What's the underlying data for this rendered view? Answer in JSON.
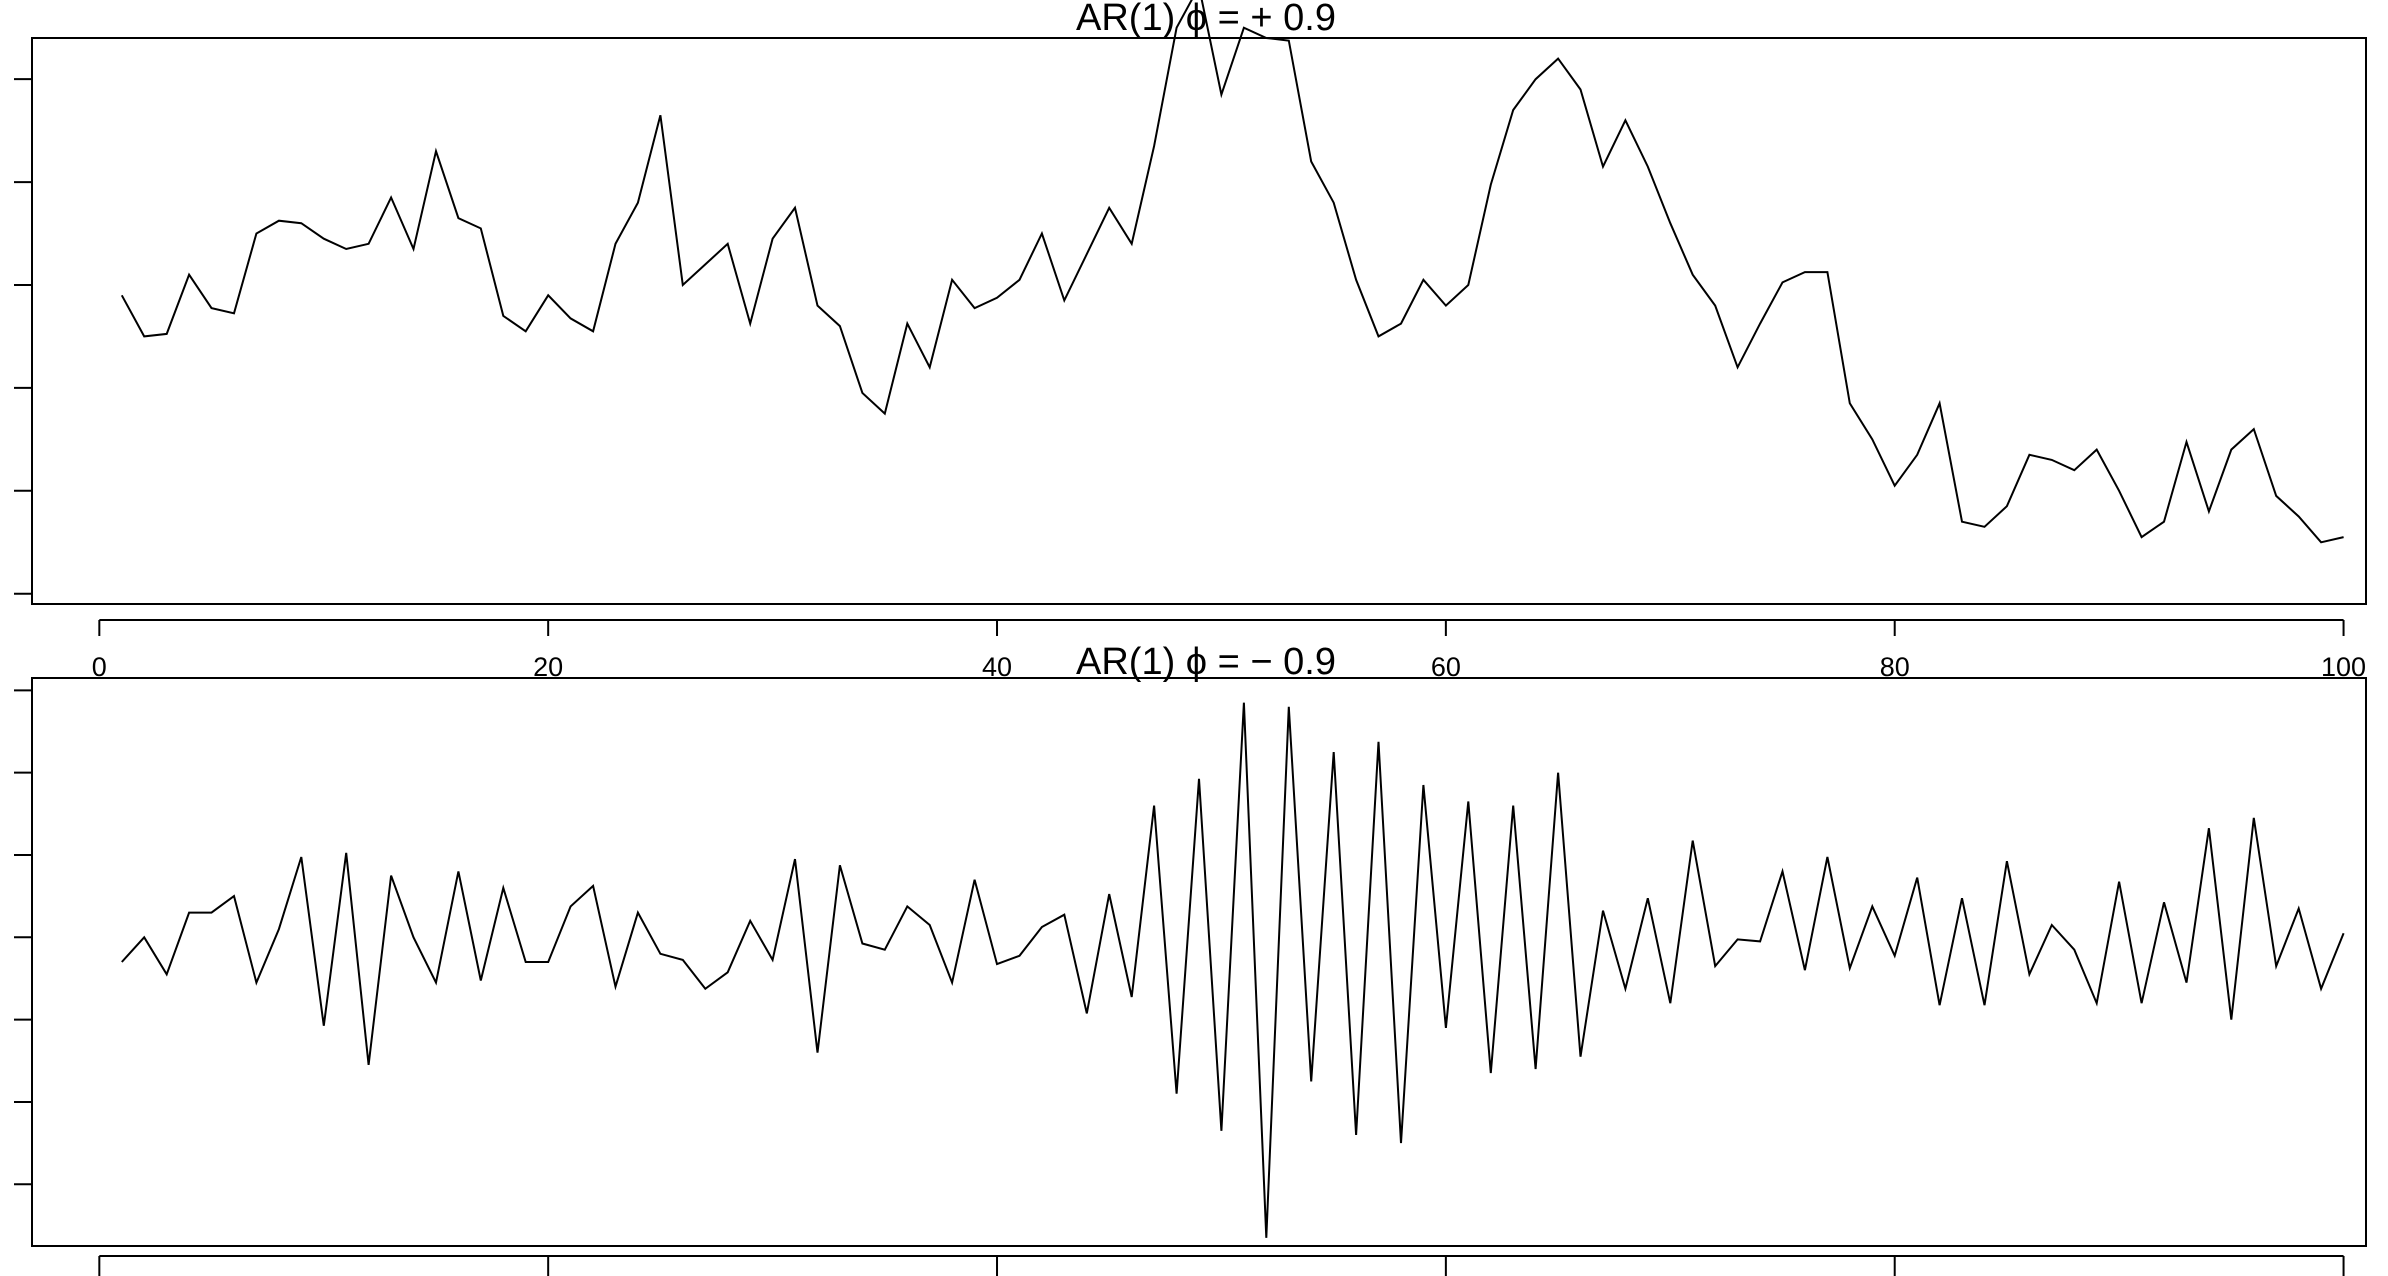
{
  "chart_data": [
    {
      "type": "line",
      "title": "AR(1)   ϕ = + 0.9",
      "xlabel": "",
      "ylabel": "",
      "xlim": [
        -3,
        101
      ],
      "ylim": [
        -5.2,
        5.8
      ],
      "x_ticks": [
        0,
        20,
        40,
        60,
        80,
        100
      ],
      "x_tick_labels": [
        "0",
        "20",
        "40",
        "60",
        "80",
        "100"
      ],
      "y_ticks": [
        -5,
        -3,
        -1,
        1,
        3,
        5
      ],
      "y_tick_labels": [],
      "grid": false,
      "x": [
        1,
        2,
        3,
        4,
        5,
        6,
        7,
        8,
        9,
        10,
        11,
        12,
        13,
        14,
        15,
        16,
        17,
        18,
        19,
        20,
        21,
        22,
        23,
        24,
        25,
        26,
        27,
        28,
        29,
        30,
        31,
        32,
        33,
        34,
        35,
        36,
        37,
        38,
        39,
        40,
        41,
        42,
        43,
        44,
        45,
        46,
        47,
        48,
        49,
        50,
        51,
        52,
        53,
        54,
        55,
        56,
        57,
        58,
        59,
        60,
        61,
        62,
        63,
        64,
        65,
        66,
        67,
        68,
        69,
        70,
        71,
        72,
        73,
        74,
        75,
        76,
        77,
        78,
        79,
        80,
        81,
        82,
        83,
        84,
        85,
        86,
        87,
        88,
        89,
        90,
        91,
        92,
        93,
        94,
        95,
        96,
        97,
        98,
        99,
        100
      ],
      "series": [
        {
          "values": [
            0.8,
            0.0,
            0.05,
            1.2,
            0.55,
            0.45,
            2.0,
            2.25,
            2.2,
            1.9,
            1.7,
            1.8,
            2.7,
            1.7,
            3.6,
            2.3,
            2.1,
            0.4,
            0.1,
            0.8,
            0.35,
            0.1,
            1.8,
            2.6,
            4.3,
            1.0,
            1.4,
            1.8,
            0.25,
            1.9,
            2.5,
            0.6,
            0.2,
            -1.1,
            -1.5,
            0.25,
            -0.6,
            1.1,
            0.55,
            0.75,
            1.1,
            2.0,
            0.7,
            1.6,
            2.5,
            1.8,
            3.7,
            6.0,
            6.8,
            4.7,
            6.0,
            5.8,
            5.75,
            3.4,
            2.6,
            1.1,
            0.0,
            0.25,
            1.1,
            0.6,
            1.0,
            2.95,
            4.4,
            5.0,
            5.4,
            4.8,
            3.3,
            4.2,
            3.3,
            2.2,
            1.2,
            0.6,
            -0.6,
            0.25,
            1.05,
            1.25,
            1.25,
            -1.3,
            -2.0,
            -2.9,
            -2.3,
            -1.3,
            -3.6,
            -3.7,
            -3.3,
            -2.3,
            -2.4,
            -2.6,
            -2.2,
            -3.0,
            -3.9,
            -3.6,
            -2.05,
            -3.4,
            -2.2,
            -1.8,
            -3.1,
            -3.5,
            -4.0,
            -3.9
          ]
        }
      ]
    },
    {
      "type": "line",
      "title": "AR(1)   ϕ = − 0.9",
      "xlabel": "",
      "ylabel": "",
      "xlim": [
        -3,
        101
      ],
      "ylim": [
        -7.5,
        6.3
      ],
      "x_ticks": [
        0,
        20,
        40,
        60,
        80,
        100
      ],
      "x_tick_labels": [],
      "y_ticks": [
        -6,
        -4,
        -2,
        0,
        2,
        4,
        6
      ],
      "y_tick_labels": [],
      "grid": false,
      "x": [
        1,
        2,
        3,
        4,
        5,
        6,
        7,
        8,
        9,
        10,
        11,
        12,
        13,
        14,
        15,
        16,
        17,
        18,
        19,
        20,
        21,
        22,
        23,
        24,
        25,
        26,
        27,
        28,
        29,
        30,
        31,
        32,
        33,
        34,
        35,
        36,
        37,
        38,
        39,
        40,
        41,
        42,
        43,
        44,
        45,
        46,
        47,
        48,
        49,
        50,
        51,
        52,
        53,
        54,
        55,
        56,
        57,
        58,
        59,
        60,
        61,
        62,
        63,
        64,
        65,
        66,
        67,
        68,
        69,
        70,
        71,
        72,
        73,
        74,
        75,
        76,
        77,
        78,
        79,
        80,
        81,
        82,
        83,
        84,
        85,
        86,
        87,
        88,
        89,
        90,
        91,
        92,
        93,
        94,
        95,
        96,
        97,
        98,
        99,
        100
      ],
      "series": [
        {
          "values": [
            -0.6,
            0.0,
            -0.9,
            0.6,
            0.6,
            1.0,
            -1.1,
            0.2,
            1.95,
            -2.15,
            2.05,
            -3.1,
            1.5,
            0.0,
            -1.1,
            1.6,
            -1.05,
            1.2,
            -0.6,
            -0.6,
            0.75,
            1.25,
            -1.2,
            0.6,
            -0.4,
            -0.55,
            -1.25,
            -0.85,
            0.4,
            -0.55,
            1.9,
            -2.8,
            1.75,
            -0.15,
            -0.3,
            0.75,
            0.3,
            -1.1,
            1.4,
            -0.65,
            -0.45,
            0.25,
            0.55,
            -1.85,
            1.05,
            -1.45,
            3.2,
            -3.8,
            3.85,
            -4.7,
            5.7,
            -7.3,
            5.6,
            -3.5,
            4.5,
            -4.8,
            4.75,
            -5.0,
            3.7,
            -2.2,
            3.3,
            -3.3,
            3.2,
            -3.2,
            4.0,
            -2.9,
            0.65,
            -1.25,
            0.95,
            -1.6,
            2.35,
            -0.7,
            -0.05,
            -0.1,
            1.6,
            -0.8,
            1.95,
            -0.75,
            0.75,
            -0.45,
            1.45,
            -1.65,
            0.95,
            -1.65,
            1.85,
            -0.9,
            0.3,
            -0.3,
            -1.6,
            1.35,
            -1.6,
            0.85,
            -1.1,
            2.65,
            -2.0,
            2.9,
            -0.7,
            0.7,
            -1.25,
            0.1
          ]
        }
      ]
    }
  ]
}
